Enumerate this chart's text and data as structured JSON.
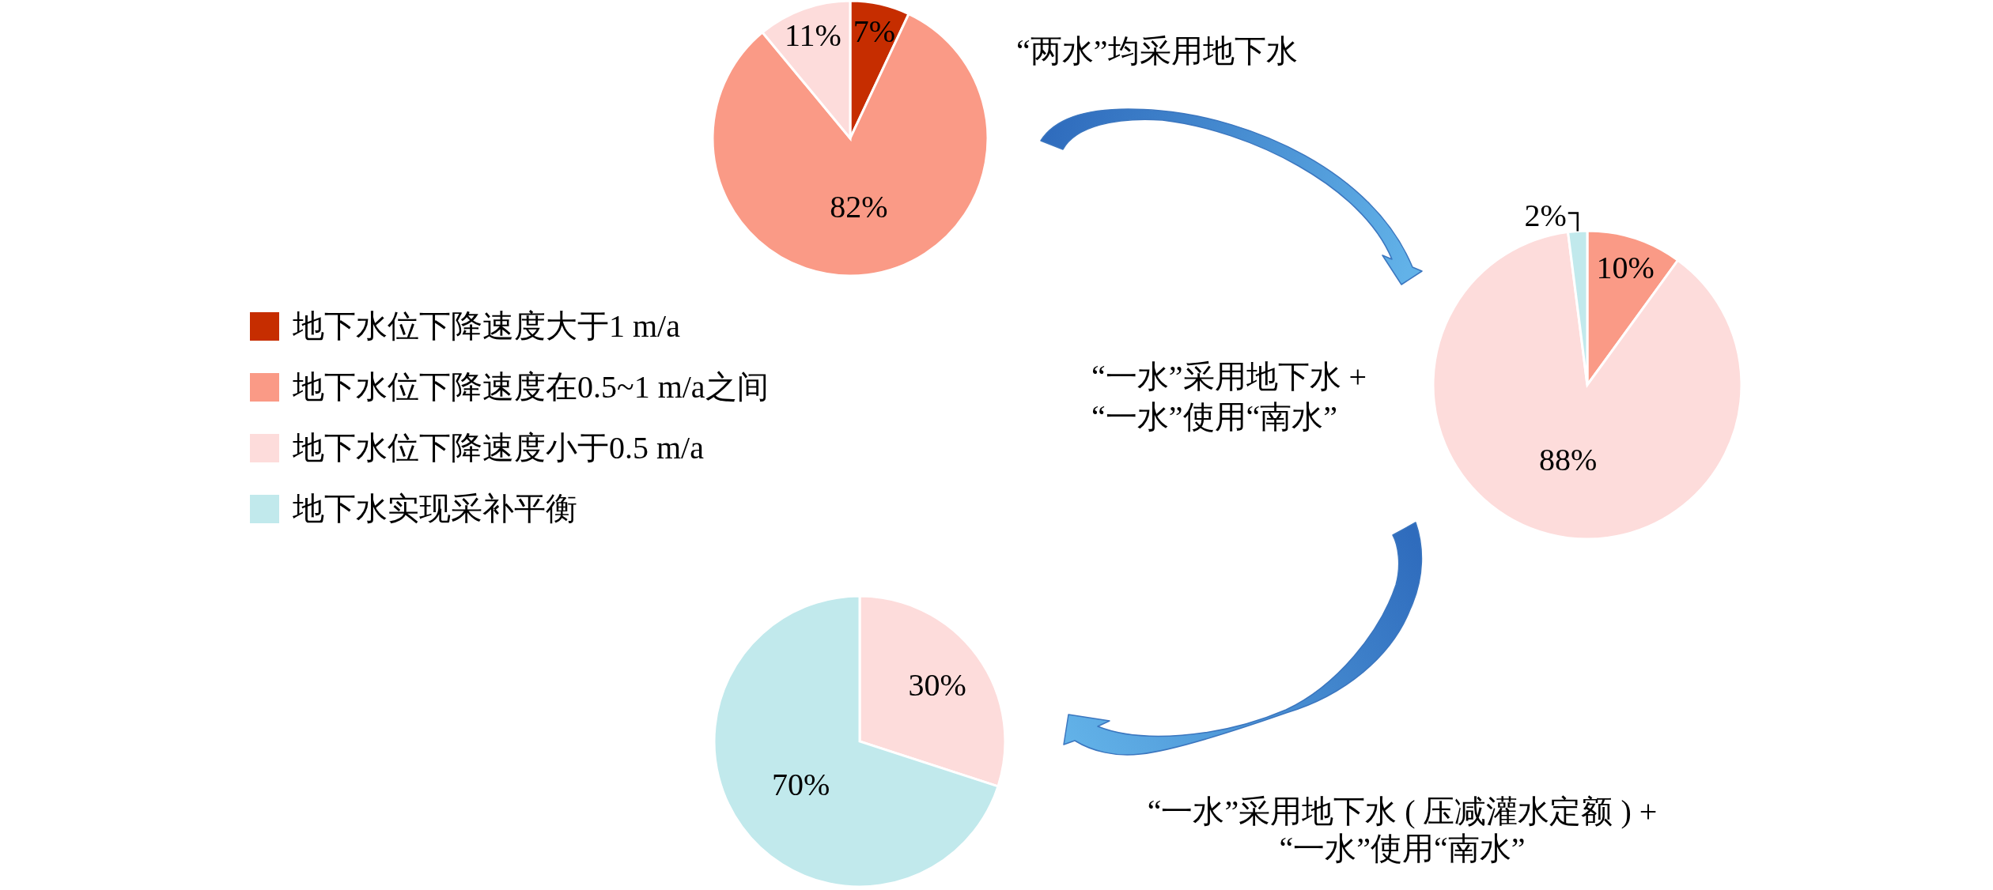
{
  "chart_data": [
    {
      "type": "pie",
      "categories": [
        "地下水位下降速度大于1 m/a",
        "地下水位下降速度在0.5~1 m/a之间",
        "地下水位下降速度小于0.5 m/a",
        "地下水实现采补平衡"
      ],
      "values": [
        7,
        82,
        11,
        null
      ],
      "colors": [
        "#c62d00",
        "#fa9a86",
        "#fddcdb",
        "#c1e9ec"
      ],
      "value_labels": [
        "7%",
        "82%",
        "11%",
        null
      ],
      "legend": "bottom left",
      "annotations": [
        "“两水”均采用地下水"
      ]
    },
    {
      "type": "pie",
      "categories": [
        null,
        null,
        null
      ],
      "values": [
        10,
        88,
        2
      ],
      "colors": [
        "#fa9a86",
        "#fddcdb",
        "#c1e9ec"
      ],
      "value_labels": [
        "10%",
        "88%",
        "2%"
      ],
      "annotations": [
        "“一水”采用地下水 +",
        "“一水”使用“南水”"
      ]
    },
    {
      "type": "pie",
      "categories": [
        null,
        null
      ],
      "values": [
        30,
        70
      ],
      "colors": [
        "#fddcdb",
        "#c1e9ec"
      ],
      "value_labels": [
        "30%",
        "70%"
      ],
      "annotations": [
        "“一水”采用地下水 ( 压减灌水定额 ) +",
        "“一水”使用“南水”"
      ]
    }
  ]
}
